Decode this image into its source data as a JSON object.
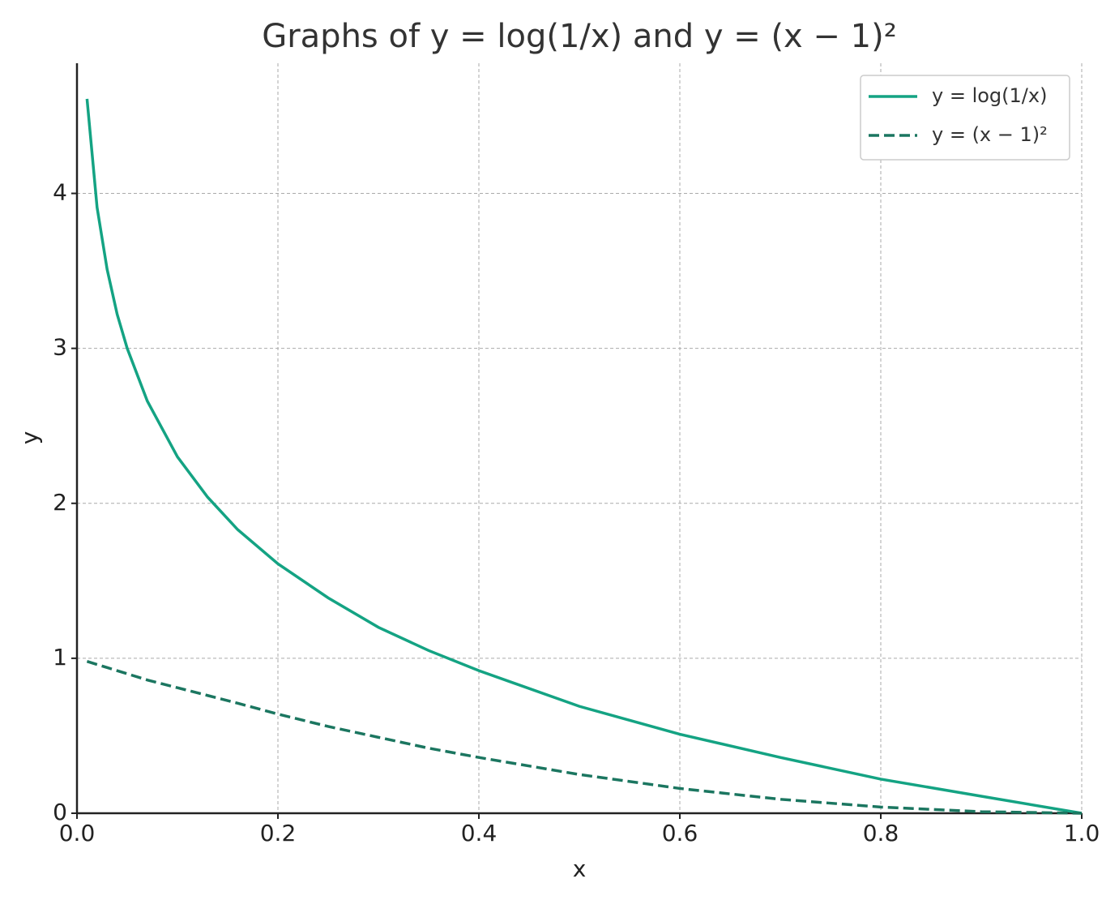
{
  "chart_data": {
    "type": "line",
    "title": "Graphs of y = log(1/x) and y = (x − 1)²",
    "xlabel": "x",
    "ylabel": "y",
    "x": [
      0.01,
      0.02,
      0.03,
      0.04,
      0.05,
      0.07,
      0.1,
      0.13,
      0.16,
      0.2,
      0.25,
      0.3,
      0.35,
      0.4,
      0.5,
      0.6,
      0.7,
      0.8,
      0.9,
      1.0
    ],
    "series": [
      {
        "name": "y = log(1/x)",
        "color": "#14a383",
        "linestyle": "solid",
        "values": [
          4.61,
          3.91,
          3.51,
          3.22,
          3.0,
          2.66,
          2.3,
          2.04,
          1.83,
          1.61,
          1.39,
          1.2,
          1.05,
          0.92,
          0.69,
          0.51,
          0.36,
          0.22,
          0.11,
          0
        ]
      },
      {
        "name": "y = (x − 1)²",
        "color": "#1b7660",
        "linestyle": "dashed",
        "values": [
          0.98,
          0.96,
          0.94,
          0.92,
          0.9,
          0.86,
          0.81,
          0.76,
          0.71,
          0.64,
          0.56,
          0.49,
          0.42,
          0.36,
          0.25,
          0.16,
          0.09,
          0.04,
          0.01,
          0
        ]
      }
    ],
    "xlim": [
      0,
      1
    ],
    "ylim": [
      0,
      4.84
    ],
    "xticks": [
      {
        "value": 0,
        "label": "0.0"
      },
      0.2,
      0.4,
      0.6,
      0.8,
      {
        "value": 1,
        "label": "1.0"
      }
    ],
    "yticks": [
      0,
      1,
      2,
      3,
      4
    ],
    "grid": true,
    "legend": "upper right"
  }
}
